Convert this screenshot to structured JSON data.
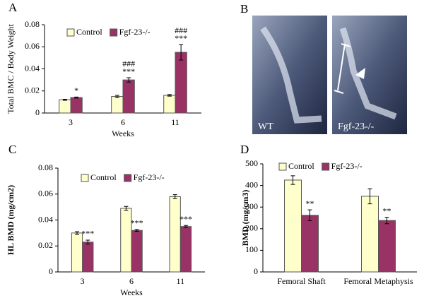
{
  "panel_labels": [
    "A",
    "B",
    "C",
    "D"
  ],
  "xray": {
    "labels": [
      "WT",
      "Fgf-23-/-"
    ]
  },
  "chart_data": [
    {
      "type": "bar",
      "xlabel": "Weeks",
      "ylabel": "Total BMC / Body Weight",
      "categories": [
        "3",
        "6",
        "11"
      ],
      "ylim": [
        0,
        0.08
      ],
      "yticks": [
        0,
        0.02,
        0.04,
        0.06,
        0.08
      ],
      "grid": false,
      "legend": "top-left",
      "series": [
        {
          "name": "Control",
          "color": "#ffffcc",
          "values": [
            0.012,
            0.015,
            0.016
          ],
          "errors": [
            0.0005,
            0.001,
            0.0007
          ],
          "significance": [
            null,
            null,
            null
          ]
        },
        {
          "name": "Fgf-23-/-",
          "color": "#993366",
          "values": [
            0.014,
            0.03,
            0.055
          ],
          "errors": [
            0.0005,
            0.002,
            0.007
          ],
          "significance": [
            [
              "*"
            ],
            [
              "###",
              "***"
            ],
            [
              "###",
              "***"
            ]
          ]
        }
      ]
    },
    {
      "type": "bar",
      "xlabel": "Weeks",
      "ylabel": "HL BMD (mg/cm2)",
      "categories": [
        "3",
        "6",
        "11"
      ],
      "ylim": [
        0,
        0.08
      ],
      "yticks": [
        0,
        0.02,
        0.04,
        0.06,
        0.08
      ],
      "grid": false,
      "legend": "top-left",
      "series": [
        {
          "name": "Control",
          "color": "#ffffcc",
          "values": [
            0.03,
            0.049,
            0.058
          ],
          "errors": [
            0.001,
            0.0015,
            0.0015
          ],
          "significance": [
            null,
            null,
            null
          ]
        },
        {
          "name": "Fgf-23-/-",
          "color": "#993366",
          "values": [
            0.023,
            0.032,
            0.035
          ],
          "errors": [
            0.0015,
            0.0007,
            0.0008
          ],
          "significance": [
            [
              "***"
            ],
            [
              "***"
            ],
            [
              "***"
            ]
          ]
        }
      ]
    },
    {
      "type": "bar",
      "ylabel": "BMD (mg/cm3)",
      "categories": [
        "Femoral Shaft",
        "Femoral Metaphysis"
      ],
      "ylim": [
        0,
        500
      ],
      "yticks": [
        0,
        100,
        200,
        300,
        400,
        500
      ],
      "grid": false,
      "legend": "top-left",
      "series": [
        {
          "name": "Control",
          "color": "#ffffcc",
          "values": [
            425,
            350
          ],
          "errors": [
            20,
            35
          ],
          "significance": [
            null,
            null
          ]
        },
        {
          "name": "Fgf-23-/-",
          "color": "#993366",
          "values": [
            262,
            238
          ],
          "errors": [
            25,
            15
          ],
          "significance": [
            [
              "**"
            ],
            [
              "**"
            ]
          ]
        }
      ]
    }
  ]
}
